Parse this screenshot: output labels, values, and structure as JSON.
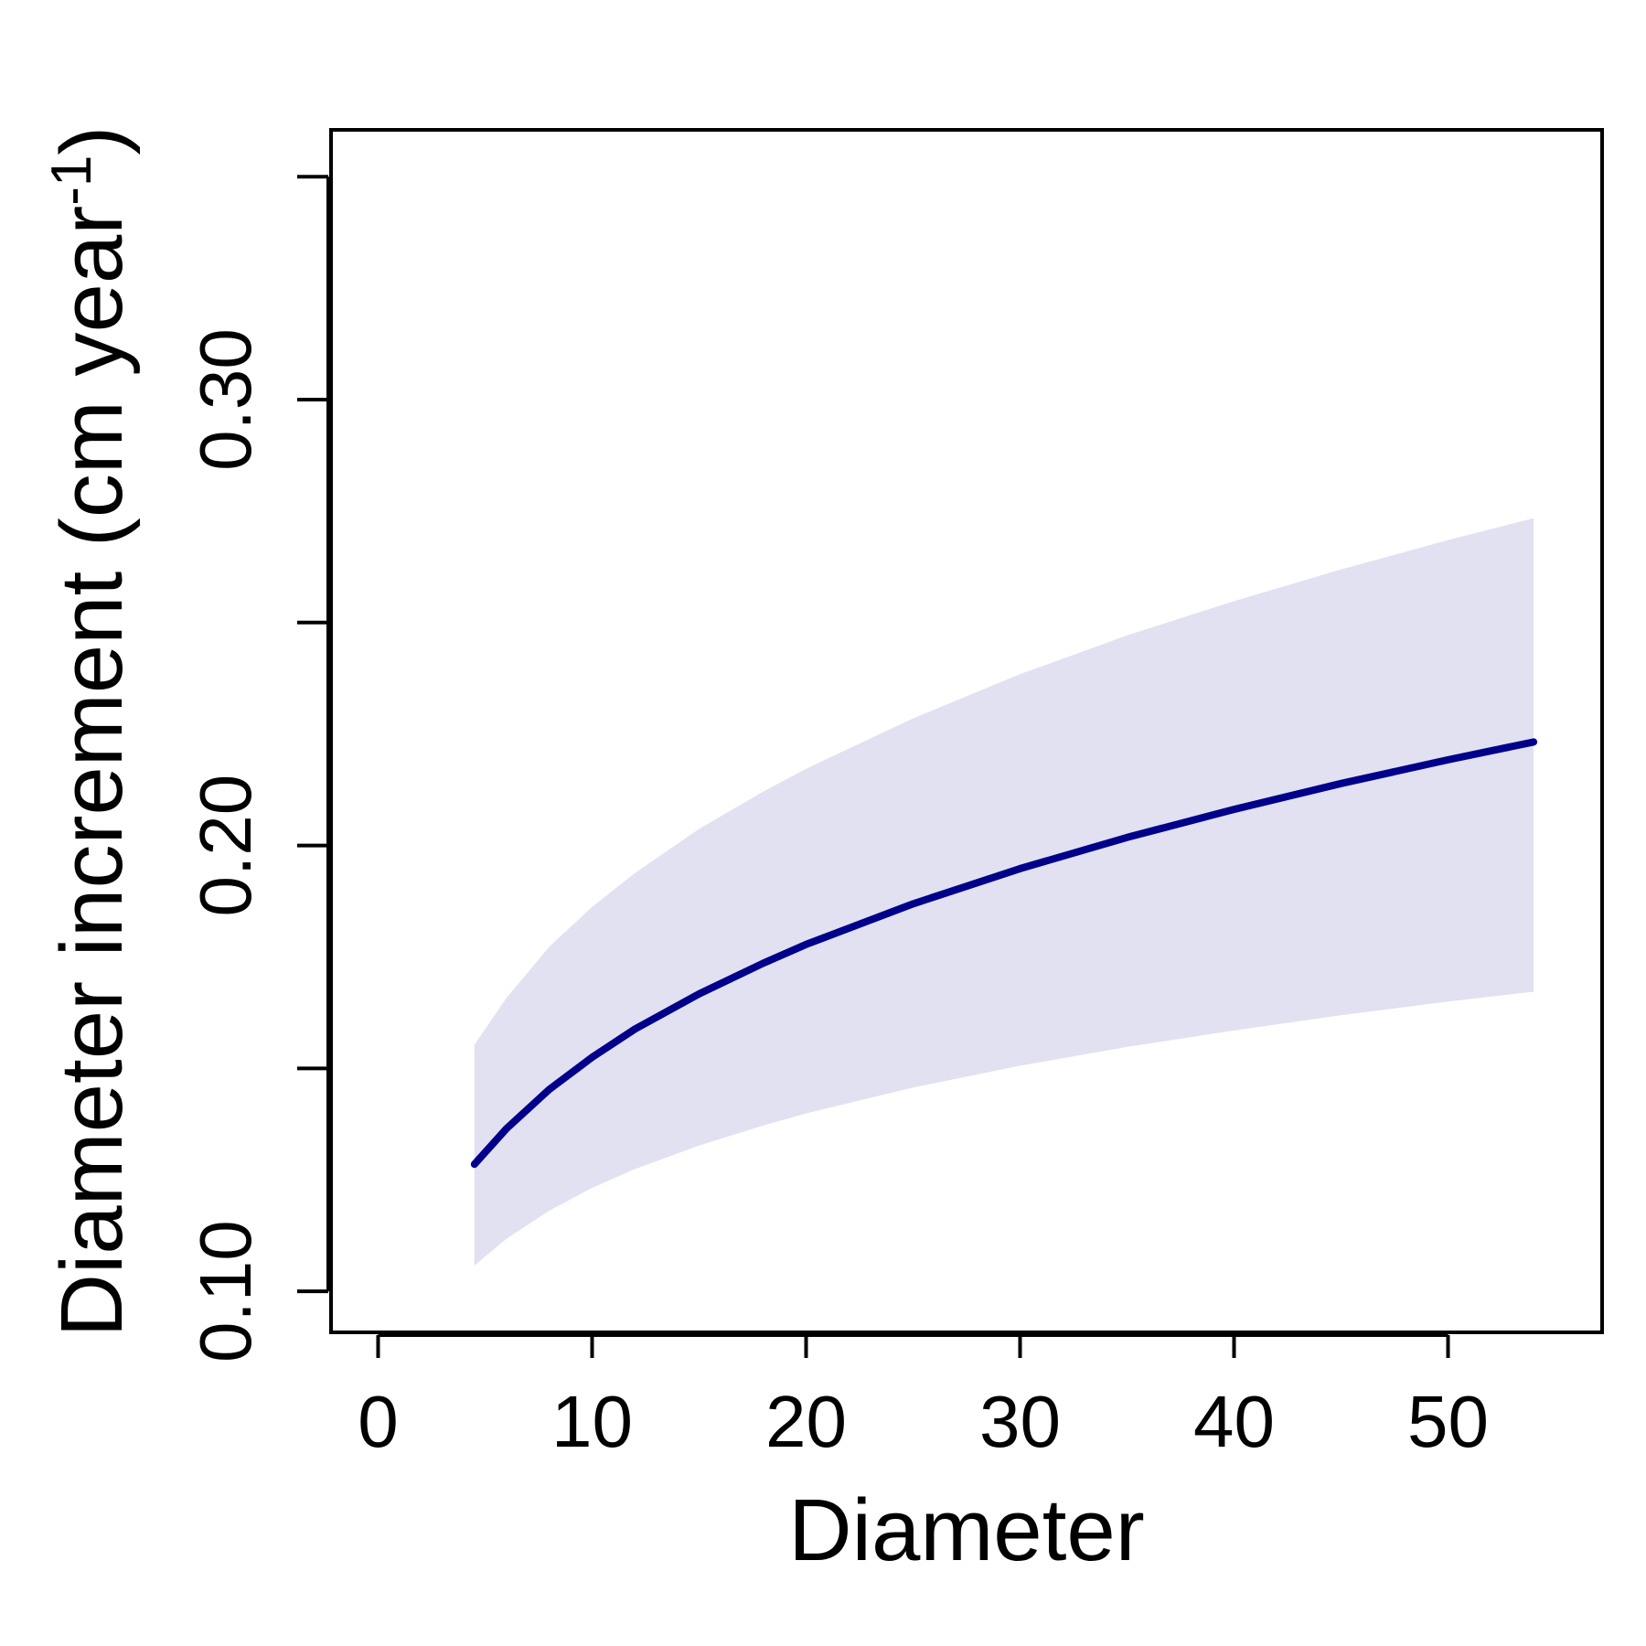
{
  "chart_data": {
    "type": "line",
    "xlabel": "Diameter",
    "ylabel": {
      "main": "Diameter increment (cm year",
      "superscript": "-1",
      "close": ")"
    },
    "xlim": [
      -2.2,
      57.2
    ],
    "ylim": [
      0.0908,
      0.3605
    ],
    "x_ticks": [
      0,
      10,
      20,
      30,
      40,
      50
    ],
    "x_tick_labels": [
      "0",
      "10",
      "20",
      "30",
      "40",
      "50"
    ],
    "y_ticks": [
      0.1,
      0.15,
      0.2,
      0.25,
      0.3,
      0.35
    ],
    "y_tick_labels": [
      "0.10",
      "",
      "0.20",
      "",
      "0.30",
      ""
    ],
    "grid": false,
    "series": [
      {
        "role": "fit",
        "color": "#00008B",
        "x": [
          4.5,
          6,
          8,
          10,
          12,
          15,
          18,
          20,
          25,
          30,
          35,
          40,
          45,
          50,
          54
        ],
        "y": [
          0.1285,
          0.1365,
          0.1453,
          0.1525,
          0.1588,
          0.1667,
          0.1736,
          0.1778,
          0.1869,
          0.1948,
          0.2018,
          0.2081,
          0.2139,
          0.2192,
          0.2232
        ]
      }
    ],
    "band": {
      "role": "confidence-interval",
      "color": "#E1E1F1",
      "x": [
        4.5,
        6,
        8,
        10,
        12,
        15,
        18,
        20,
        25,
        30,
        35,
        40,
        45,
        50,
        54
      ],
      "lower": [
        0.1058,
        0.1118,
        0.1181,
        0.1232,
        0.1274,
        0.1327,
        0.1372,
        0.1399,
        0.1457,
        0.1506,
        0.1548,
        0.1585,
        0.1619,
        0.165,
        0.1672
      ],
      "upper": [
        0.1553,
        0.1658,
        0.1773,
        0.1862,
        0.1938,
        0.2037,
        0.2121,
        0.2172,
        0.2285,
        0.2384,
        0.2471,
        0.2548,
        0.2619,
        0.2685,
        0.2734
      ]
    }
  }
}
